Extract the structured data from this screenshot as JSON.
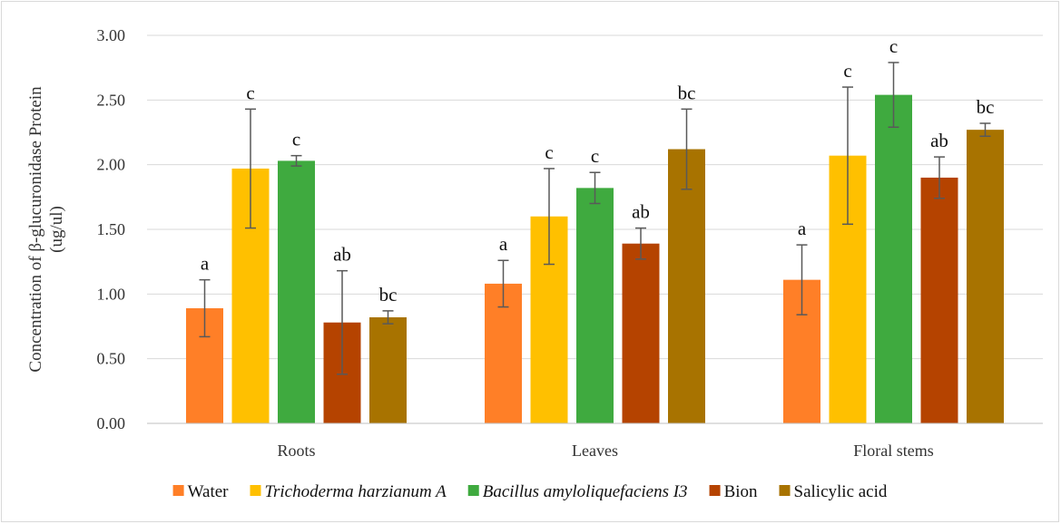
{
  "chart_data": {
    "type": "bar",
    "title": "",
    "xlabel": "",
    "ylabel_lines": [
      "Concentration of β-glucuronidase Protein",
      "(ug/ul)"
    ],
    "ylim": [
      0,
      3
    ],
    "yticks": [
      "0.00",
      "0.50",
      "1.00",
      "1.50",
      "2.00",
      "2.50",
      "3.00"
    ],
    "grid": "horizontal",
    "legend_position": "bottom",
    "categories": [
      "Roots",
      "Leaves",
      "Floral stems"
    ],
    "series": [
      {
        "name": "Water",
        "italic": false,
        "color": "#FF7F27",
        "values": [
          0.89,
          1.08,
          1.11
        ],
        "errors": [
          0.22,
          0.18,
          0.27
        ],
        "labels": [
          "a",
          "a",
          "a"
        ]
      },
      {
        "name": "Trichoderma harzianum A",
        "italic": true,
        "color": "#FFC000",
        "values": [
          1.97,
          1.6,
          2.07
        ],
        "errors": [
          0.46,
          0.37,
          0.53
        ],
        "labels": [
          "c",
          "c",
          "c"
        ]
      },
      {
        "name": "Bacillus amyloliquefaciens I3",
        "italic": true,
        "color": "#3FAA3F",
        "values": [
          2.03,
          1.82,
          2.54
        ],
        "errors": [
          0.04,
          0.12,
          0.25
        ],
        "labels": [
          "c",
          "c",
          "c"
        ]
      },
      {
        "name": "Bion",
        "italic": false,
        "color": "#B54300",
        "values": [
          0.78,
          1.39,
          1.9
        ],
        "errors": [
          0.4,
          0.12,
          0.16
        ],
        "labels": [
          "ab",
          "ab",
          "ab"
        ]
      },
      {
        "name": "Salicylic acid",
        "italic": false,
        "color": "#A87300",
        "values": [
          0.82,
          2.12,
          2.27
        ],
        "errors": [
          0.05,
          0.31,
          0.05
        ],
        "labels": [
          "bc",
          "bc",
          "bc"
        ]
      }
    ]
  }
}
